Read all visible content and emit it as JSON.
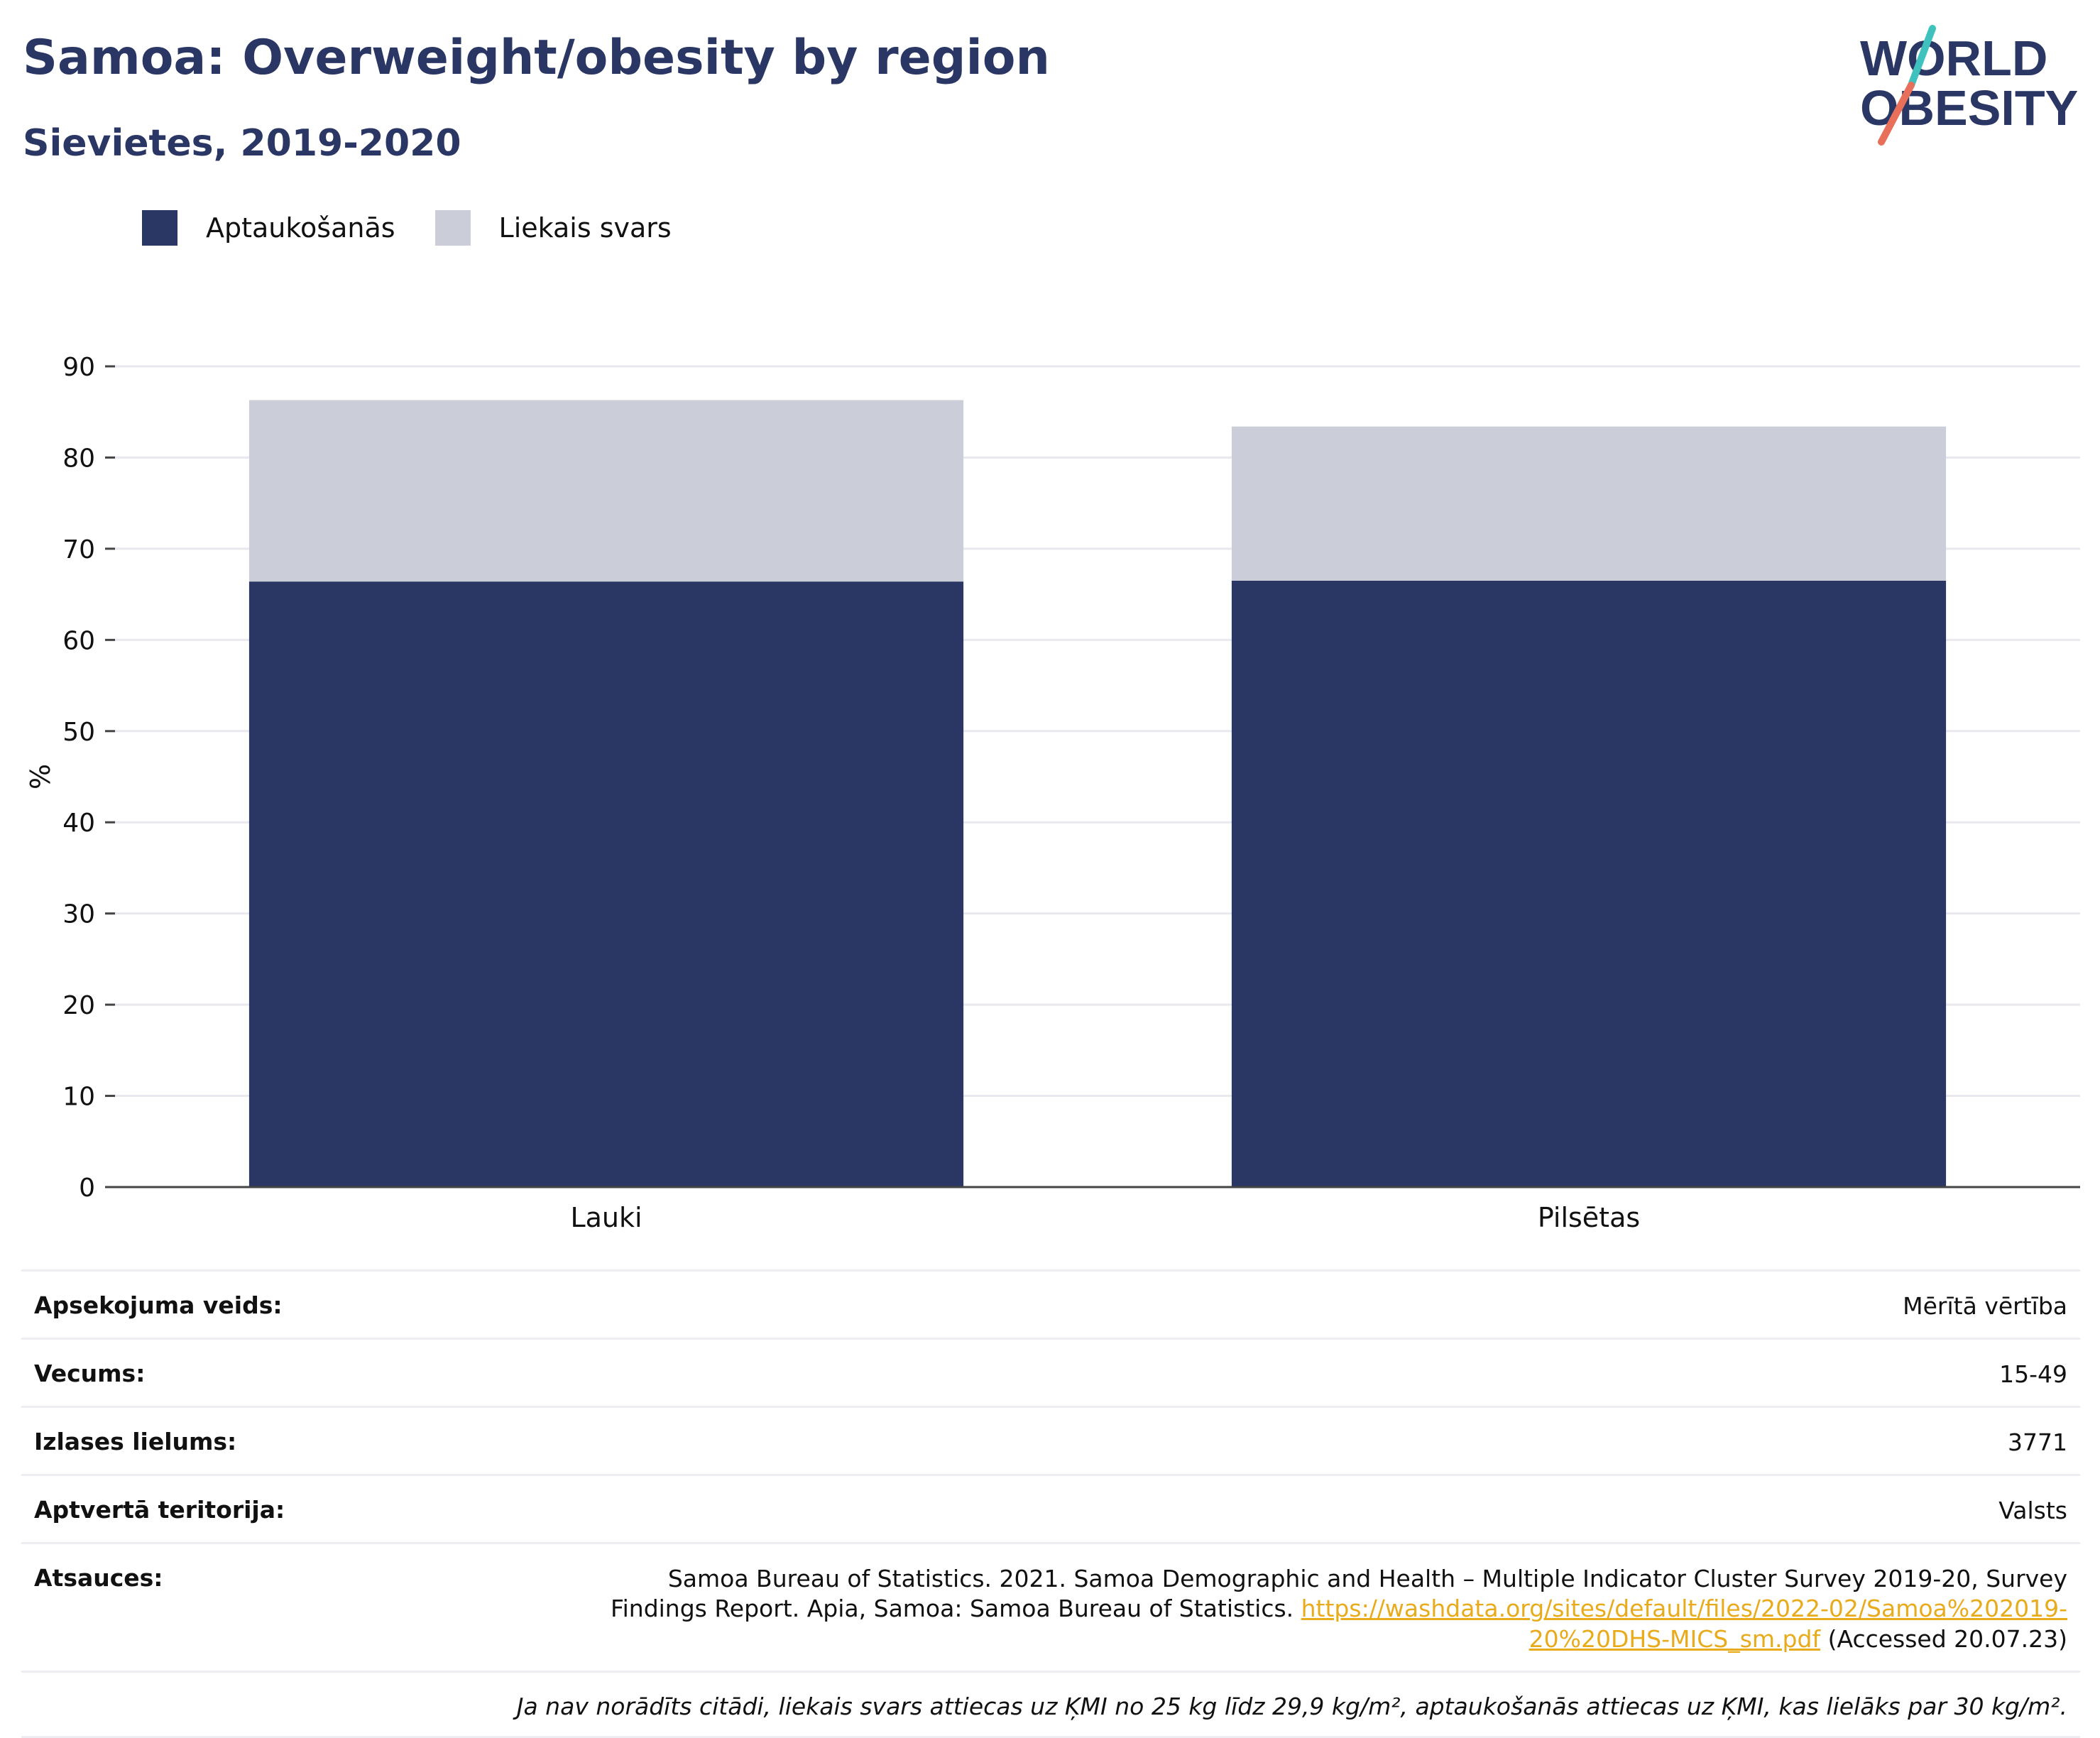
{
  "header": {
    "title": "Samoa: Overweight/obesity by region",
    "subtitle": "Sievietes, 2019-2020"
  },
  "logo": {
    "line1": "WORLD",
    "line2": "OBESITY"
  },
  "colors": {
    "obesity": "#2a3663",
    "overweight": "#cbcdd8",
    "accent_teal": "#3fc2bd",
    "accent_red": "#e8705b",
    "link": "#e8ab1c"
  },
  "chart_data": {
    "type": "bar",
    "stacked": true,
    "categories": [
      "Lauki",
      "Pilsētas"
    ],
    "series": [
      {
        "name": "Aptaukošanās",
        "values": [
          66.4,
          66.5
        ],
        "color": "#2a3663"
      },
      {
        "name": "Liekais svars",
        "values": [
          19.9,
          16.9
        ],
        "color": "#cbcdd8"
      }
    ],
    "ylabel": "%",
    "yticks": [
      0,
      10,
      20,
      30,
      40,
      50,
      60,
      70,
      80,
      90
    ],
    "ylim": [
      0,
      90
    ],
    "grid": true,
    "legend_position": "top-left"
  },
  "meta": {
    "survey_type_label": "Apsekojuma veids:",
    "survey_type_value": "Mērītā vērtība",
    "age_label": "Vecums:",
    "age_value": "15-49",
    "sample_label": "Izlases lielums:",
    "sample_value": "3771",
    "coverage_label": "Aptvertā teritorija:",
    "coverage_value": "Valsts",
    "references_label": "Atsauces:",
    "references_text": "Samoa Bureau of Statistics. 2021. Samoa Demographic and Health – Multiple Indicator Cluster Survey 2019-20, Survey Findings Report. Apia, Samoa: Samoa Bureau of Statistics.",
    "references_link": "https://washdata.org/sites/default/files/2022-02/Samoa%202019-20%20DHS-MICS_sm.pdf",
    "references_accessed": "(Accessed 20.07.23)",
    "note": "Ja nav norādīts citādi, liekais svars attiecas uz ĶMI no 25 kg līdz 29,9 kg/m², aptaukošanās attiecas uz ĶMI, kas lielāks par 30 kg/m²."
  }
}
